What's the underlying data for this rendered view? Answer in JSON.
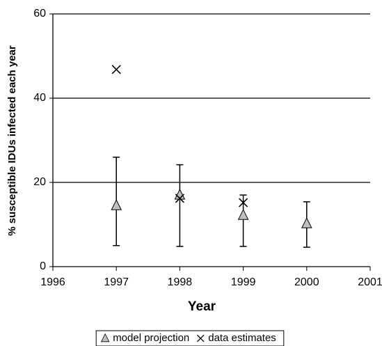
{
  "chart_data": {
    "type": "scatter",
    "x_label": "Year",
    "y_label": "% susceptible IDUs infected each year",
    "xlim": [
      1996,
      2001
    ],
    "xticks": [
      1996,
      1997,
      1998,
      1999,
      2000,
      2001
    ],
    "ylim": [
      0,
      60
    ],
    "yticks": [
      0,
      20,
      40,
      60
    ],
    "grid": true,
    "legend": "bottom",
    "series": [
      {
        "name": "model projection",
        "marker": "triangle",
        "color": "#c0c0c0",
        "x": [
          1997,
          1998,
          1999,
          2000
        ],
        "values": [
          14.5,
          17,
          12.2,
          10.2
        ],
        "lower": [
          5,
          4.8,
          4.8,
          4.6
        ],
        "upper": [
          26,
          24.2,
          17,
          15.4
        ]
      },
      {
        "name": "data estimates",
        "marker": "x",
        "color": "#000000",
        "x": [
          1997,
          1998,
          1999
        ],
        "values": [
          46.8,
          16.2,
          15.2
        ]
      }
    ]
  }
}
